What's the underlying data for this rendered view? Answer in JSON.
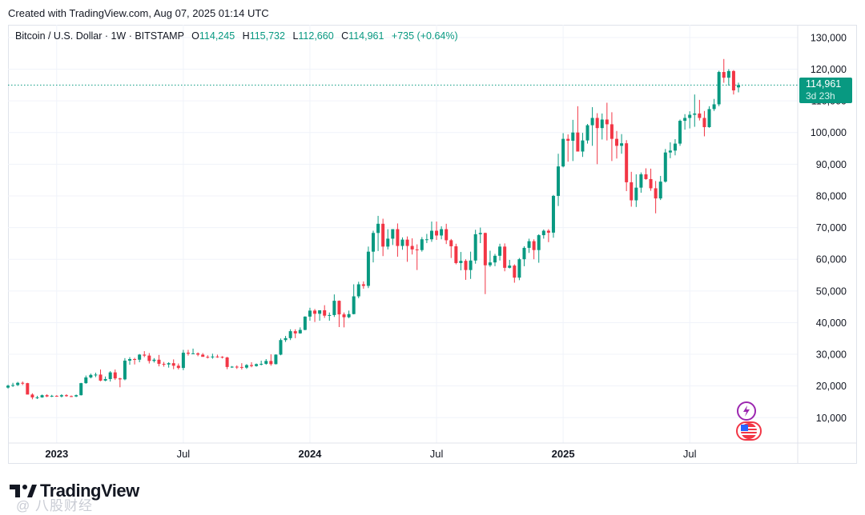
{
  "header": {
    "created_text": "Created with TradingView.com, Aug 07, 2025 01:14 UTC"
  },
  "legend": {
    "symbol": "Bitcoin / U.S. Dollar · 1W · BITSTAMP",
    "open_label": "O",
    "open": "114,245",
    "high_label": "H",
    "high": "115,732",
    "low_label": "L",
    "low": "112,660",
    "close_label": "C",
    "close": "114,961",
    "change": "+735 (+0.64%)"
  },
  "price_badge": {
    "price": "114,961",
    "countdown": "3d 23h"
  },
  "branding": {
    "logo_text": "TradingView",
    "watermark": "@ 八股财经"
  },
  "icons": {
    "events": [
      "lightning-icon",
      "us-flag-icon"
    ]
  },
  "colors": {
    "up": "#089981",
    "down": "#f23645",
    "last_price_line": "#089981"
  },
  "chart_data": {
    "type": "candlestick",
    "timeframe": "1W",
    "y_range": [
      2000,
      134000
    ],
    "y_ticks": [
      10000,
      20000,
      30000,
      40000,
      50000,
      60000,
      70000,
      80000,
      90000,
      100000,
      110000,
      120000,
      130000
    ],
    "y_tick_labels": [
      "10,000",
      "20,000",
      "30,000",
      "40,000",
      "50,000",
      "60,000",
      "70,000",
      "80,000",
      "90,000",
      "100,000",
      "110,000",
      "120,000",
      "130,000"
    ],
    "x_labels": [
      {
        "text": "2023",
        "index": 10,
        "bold": true
      },
      {
        "text": "Jul",
        "index": 36,
        "bold": false
      },
      {
        "text": "2024",
        "index": 62,
        "bold": true
      },
      {
        "text": "Jul",
        "index": 88,
        "bold": false
      },
      {
        "text": "2025",
        "index": 114,
        "bold": true
      },
      {
        "text": "Jul",
        "index": 140,
        "bold": false
      }
    ],
    "last_price": 114961,
    "candles": [
      [
        19500,
        20400,
        19200,
        20100
      ],
      [
        20100,
        21000,
        19700,
        20300
      ],
      [
        20300,
        21300,
        20000,
        21000
      ],
      [
        21000,
        21400,
        20300,
        20900
      ],
      [
        20900,
        21000,
        18000,
        17300
      ],
      [
        17300,
        17700,
        15800,
        16400
      ],
      [
        16400,
        16900,
        15900,
        16400
      ],
      [
        16400,
        17300,
        16300,
        17100
      ],
      [
        17100,
        17400,
        16500,
        16700
      ],
      [
        16700,
        17200,
        16500,
        16900
      ],
      [
        16900,
        17100,
        16600,
        16700
      ],
      [
        16700,
        17400,
        16400,
        17100
      ],
      [
        17100,
        17400,
        16600,
        16800
      ],
      [
        16800,
        17000,
        16500,
        16700
      ],
      [
        16700,
        17300,
        16500,
        17100
      ],
      [
        17100,
        21000,
        17000,
        20900
      ],
      [
        20900,
        23300,
        20700,
        22700
      ],
      [
        22700,
        23900,
        22400,
        23500
      ],
      [
        23500,
        24200,
        22800,
        23600
      ],
      [
        23600,
        25200,
        21500,
        21700
      ],
      [
        21700,
        23000,
        21500,
        22200
      ],
      [
        22200,
        24700,
        21400,
        24300
      ],
      [
        24300,
        25200,
        21900,
        22400
      ],
      [
        22400,
        22600,
        19600,
        22100
      ],
      [
        22100,
        28800,
        21800,
        28000
      ],
      [
        28000,
        29100,
        26700,
        28500
      ],
      [
        28500,
        28900,
        26800,
        28300
      ],
      [
        28300,
        30100,
        27500,
        29900
      ],
      [
        29900,
        31000,
        29100,
        29600
      ],
      [
        29600,
        30400,
        27100,
        27900
      ],
      [
        27900,
        28800,
        27400,
        28300
      ],
      [
        28300,
        29800,
        26200,
        27000
      ],
      [
        27000,
        27600,
        26100,
        26800
      ],
      [
        26800,
        27500,
        25800,
        27200
      ],
      [
        27200,
        28400,
        25300,
        26400
      ],
      [
        26400,
        27100,
        25200,
        25700
      ],
      [
        25700,
        31400,
        25000,
        30500
      ],
      [
        30500,
        31400,
        29600,
        30200
      ],
      [
        30200,
        31800,
        30100,
        30300
      ],
      [
        30300,
        30600,
        29400,
        29900
      ],
      [
        29900,
        30400,
        29300,
        29200
      ],
      [
        29200,
        29700,
        28700,
        29100
      ],
      [
        29100,
        30200,
        28600,
        29300
      ],
      [
        29300,
        29900,
        28900,
        29200
      ],
      [
        29200,
        29400,
        28700,
        29000
      ],
      [
        29000,
        29200,
        25300,
        26000
      ],
      [
        26000,
        26300,
        25700,
        26100
      ],
      [
        26100,
        26500,
        25400,
        26000
      ],
      [
        26000,
        27200,
        25200,
        25800
      ],
      [
        25800,
        26900,
        25400,
        26600
      ],
      [
        26600,
        27500,
        25900,
        26300
      ],
      [
        26300,
        27100,
        26100,
        26900
      ],
      [
        26900,
        28000,
        26500,
        27000
      ],
      [
        27000,
        28500,
        26700,
        27900
      ],
      [
        27900,
        30000,
        26400,
        26900
      ],
      [
        26900,
        30000,
        26800,
        29900
      ],
      [
        29900,
        35000,
        29700,
        34500
      ],
      [
        34500,
        35800,
        33900,
        35100
      ],
      [
        35100,
        37900,
        34500,
        37300
      ],
      [
        37300,
        37900,
        35100,
        36600
      ],
      [
        36600,
        38500,
        36500,
        37700
      ],
      [
        37700,
        42000,
        37600,
        41900
      ],
      [
        41900,
        44700,
        40600,
        43800
      ],
      [
        43800,
        44300,
        40200,
        42800
      ],
      [
        42800,
        43800,
        40600,
        43900
      ],
      [
        43900,
        45500,
        41500,
        42200
      ],
      [
        42200,
        43200,
        40600,
        42400
      ],
      [
        42400,
        48900,
        41800,
        46900
      ],
      [
        46900,
        47000,
        38600,
        42600
      ],
      [
        42600,
        43200,
        38500,
        41700
      ],
      [
        41700,
        43800,
        41400,
        42700
      ],
      [
        42700,
        52100,
        42600,
        48300
      ],
      [
        48300,
        52900,
        47700,
        52100
      ],
      [
        52100,
        53000,
        50700,
        51600
      ],
      [
        51600,
        64000,
        50900,
        62400
      ],
      [
        62400,
        69000,
        59000,
        68300
      ],
      [
        68300,
        73700,
        62600,
        71200
      ],
      [
        71200,
        72800,
        61000,
        64000
      ],
      [
        64000,
        69500,
        63100,
        66500
      ],
      [
        66500,
        68900,
        64500,
        69500
      ],
      [
        69500,
        71300,
        60800,
        64200
      ],
      [
        64200,
        66900,
        63000,
        66200
      ],
      [
        66200,
        67200,
        59200,
        64200
      ],
      [
        64200,
        66600,
        61500,
        63100
      ],
      [
        63100,
        64700,
        56600,
        62900
      ],
      [
        62900,
        67000,
        62400,
        66300
      ],
      [
        66300,
        68000,
        65100,
        66300
      ],
      [
        66300,
        71900,
        65500,
        69000
      ],
      [
        69000,
        71900,
        66100,
        67500
      ],
      [
        67500,
        70400,
        66300,
        69500
      ],
      [
        69500,
        71200,
        64800,
        66000
      ],
      [
        66000,
        66400,
        60400,
        64100
      ],
      [
        64100,
        64900,
        58400,
        58800
      ],
      [
        58800,
        62300,
        56500,
        59500
      ],
      [
        59500,
        60000,
        53500,
        56600
      ],
      [
        56600,
        62400,
        53800,
        59600
      ],
      [
        59600,
        69300,
        58600,
        67900
      ],
      [
        67900,
        70000,
        65100,
        68300
      ],
      [
        68300,
        68400,
        49000,
        58100
      ],
      [
        58100,
        62700,
        57600,
        59000
      ],
      [
        59000,
        61700,
        57800,
        61100
      ],
      [
        61100,
        64900,
        59600,
        64000
      ],
      [
        64000,
        65000,
        56200,
        57300
      ],
      [
        57300,
        59800,
        57100,
        58000
      ],
      [
        58000,
        58400,
        52600,
        54200
      ],
      [
        54200,
        60400,
        53400,
        60000
      ],
      [
        60000,
        64100,
        57800,
        63600
      ],
      [
        63600,
        66500,
        62000,
        65700
      ],
      [
        65700,
        66300,
        60000,
        62900
      ],
      [
        62900,
        67900,
        58900,
        67600
      ],
      [
        67600,
        69400,
        66500,
        69000
      ],
      [
        69000,
        69500,
        65400,
        68400
      ],
      [
        68400,
        80300,
        66800,
        80000
      ],
      [
        80000,
        93300,
        76800,
        89300
      ],
      [
        89300,
        99800,
        89000,
        98000
      ],
      [
        98000,
        99400,
        90800,
        97400
      ],
      [
        97400,
        104000,
        91000,
        100000
      ],
      [
        100000,
        108300,
        94100,
        94000
      ],
      [
        94000,
        99900,
        92300,
        97500
      ],
      [
        97500,
        102700,
        96500,
        102300
      ],
      [
        102300,
        108000,
        95800,
        104600
      ],
      [
        104600,
        106100,
        90000,
        101400
      ],
      [
        101400,
        106000,
        97800,
        104100
      ],
      [
        104100,
        109400,
        97500,
        102600
      ],
      [
        102600,
        106400,
        91000,
        98000
      ],
      [
        98000,
        100500,
        91800,
        95800
      ],
      [
        95800,
        99500,
        93300,
        96600
      ],
      [
        96600,
        97600,
        81500,
        84300
      ],
      [
        84300,
        87600,
        76600,
        78600
      ],
      [
        78600,
        86800,
        76500,
        82600
      ],
      [
        82600,
        87400,
        81000,
        86800
      ],
      [
        86800,
        88700,
        85100,
        85300
      ],
      [
        85300,
        88600,
        81600,
        82400
      ],
      [
        82400,
        84700,
        74500,
        79200
      ],
      [
        79200,
        86300,
        78700,
        84500
      ],
      [
        84500,
        94800,
        84200,
        93700
      ],
      [
        93700,
        96900,
        91900,
        94300
      ],
      [
        94300,
        97900,
        92800,
        96500
      ],
      [
        96500,
        104100,
        95800,
        103700
      ],
      [
        103700,
        105800,
        100900,
        104600
      ],
      [
        104600,
        106700,
        101300,
        105600
      ],
      [
        105600,
        112000,
        101800,
        106000
      ],
      [
        106000,
        110300,
        103800,
        104600
      ],
      [
        104600,
        106800,
        98800,
        101700
      ],
      [
        101700,
        108300,
        101500,
        107400
      ],
      [
        107400,
        110600,
        106800,
        108900
      ],
      [
        108900,
        119500,
        108300,
        119100
      ],
      [
        119100,
        123200,
        115700,
        117300
      ],
      [
        117300,
        120000,
        114800,
        119400
      ],
      [
        119400,
        119700,
        112000,
        113300
      ],
      [
        114245,
        115732,
        112660,
        114961
      ]
    ]
  }
}
